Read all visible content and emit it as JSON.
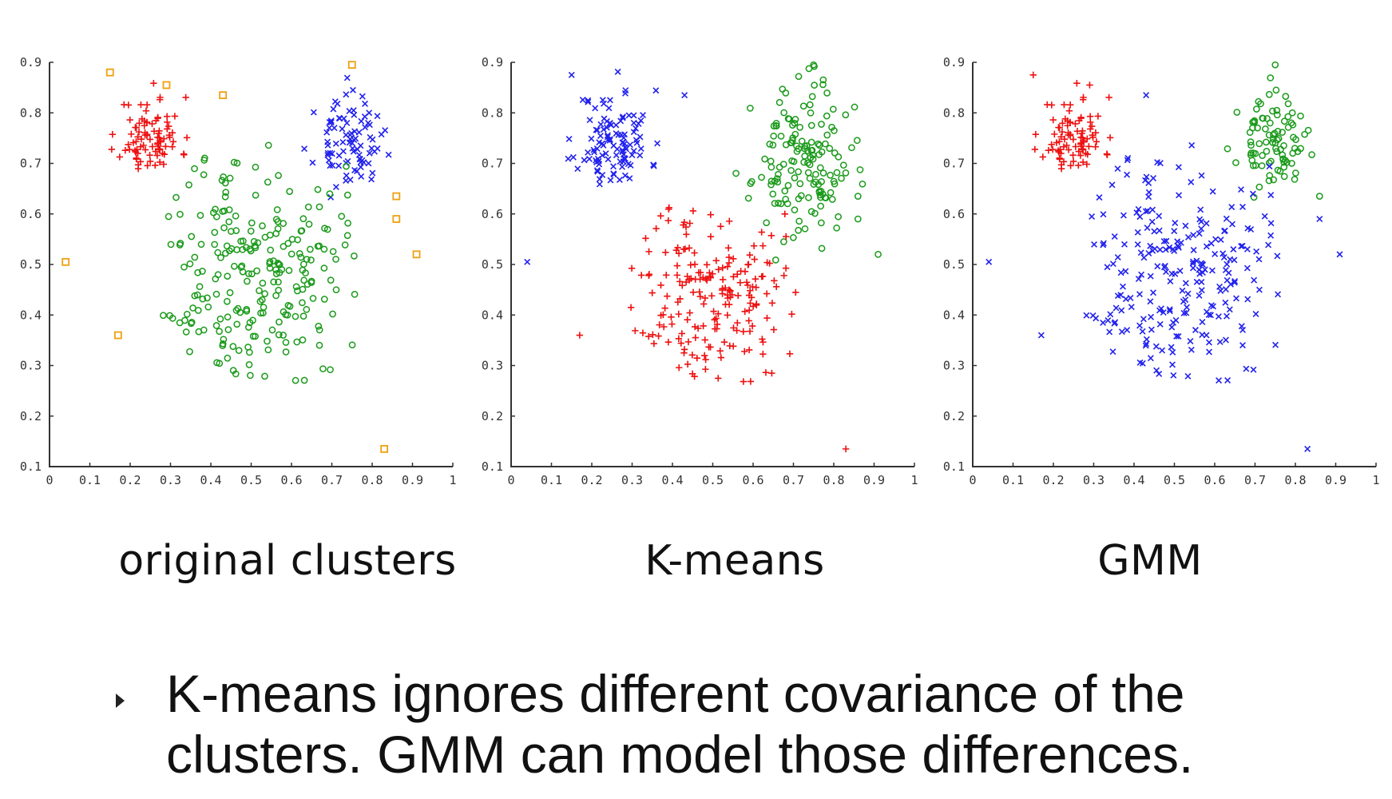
{
  "chart_data": [
    {
      "type": "scatter",
      "caption": "original clusters",
      "xlim": [
        0,
        1
      ],
      "ylim": [
        0.1,
        0.9
      ],
      "x_ticks": [
        "0",
        "0.1",
        "0.2",
        "0.3",
        "0.4",
        "0.5",
        "0.6",
        "0.7",
        "0.8",
        "0.9",
        "1"
      ],
      "y_ticks": [
        "0.1",
        "0.2",
        "0.3",
        "0.4",
        "0.5",
        "0.6",
        "0.7",
        "0.8",
        "0.9"
      ],
      "series": [
        {
          "marker": "plus",
          "color": "#ee1111",
          "cluster": {
            "cx": 0.25,
            "cy": 0.755,
            "sx": 0.038,
            "sy": 0.038,
            "n": 90,
            "seed": 11
          }
        },
        {
          "marker": "x",
          "color": "#2222ee",
          "cluster": {
            "cx": 0.74,
            "cy": 0.74,
            "sx": 0.04,
            "sy": 0.042,
            "n": 90,
            "seed": 23
          }
        },
        {
          "marker": "circle",
          "color": "#1a9a1a",
          "cluster": {
            "cx": 0.505,
            "cy": 0.49,
            "sx": 0.11,
            "sy": 0.115,
            "n": 240,
            "seed": 37,
            "xmin": 0.28,
            "xmax": 0.76,
            "ymin": 0.26,
            "ymax": 0.76
          }
        },
        {
          "marker": "square",
          "color": "#f0a010",
          "points": [
            [
              0.15,
              0.88
            ],
            [
              0.29,
              0.855
            ],
            [
              0.43,
              0.835
            ],
            [
              0.75,
              0.895
            ],
            [
              0.86,
              0.635
            ],
            [
              0.86,
              0.59
            ],
            [
              0.91,
              0.52
            ],
            [
              0.04,
              0.505
            ],
            [
              0.17,
              0.36
            ],
            [
              0.83,
              0.135
            ]
          ]
        }
      ]
    },
    {
      "type": "scatter",
      "caption": "K-means",
      "xlim": [
        0,
        1
      ],
      "ylim": [
        0.1,
        0.9
      ],
      "x_ticks": [
        "0",
        "0.1",
        "0.2",
        "0.3",
        "0.4",
        "0.5",
        "0.6",
        "0.7",
        "0.8",
        "0.9",
        "1"
      ],
      "y_ticks": [
        "0.1",
        "0.2",
        "0.3",
        "0.4",
        "0.5",
        "0.6",
        "0.7",
        "0.8",
        "0.9"
      ],
      "series": [
        {
          "marker": "x",
          "color": "#2222ee",
          "cluster": {
            "cx": 0.255,
            "cy": 0.745,
            "sx": 0.045,
            "sy": 0.05,
            "n": 110,
            "seed": 11
          }
        },
        {
          "marker": "circle",
          "color": "#1a9a1a",
          "cluster": {
            "cx": 0.72,
            "cy": 0.7,
            "sx": 0.06,
            "sy": 0.075,
            "n": 150,
            "seed": 23
          }
        },
        {
          "marker": "plus",
          "color": "#ee1111",
          "cluster": {
            "cx": 0.49,
            "cy": 0.44,
            "sx": 0.09,
            "sy": 0.09,
            "n": 200,
            "seed": 37,
            "xmin": 0.28,
            "xmax": 0.72,
            "ymin": 0.26,
            "ymax": 0.64
          }
        },
        {
          "marker": "square",
          "color": "#f0a010",
          "points": []
        }
      ],
      "extra_points": [
        {
          "marker": "x",
          "color": "#2222ee",
          "points": [
            [
              0.15,
              0.875
            ],
            [
              0.43,
              0.835
            ],
            [
              0.04,
              0.505
            ]
          ]
        },
        {
          "marker": "circle",
          "color": "#1a9a1a",
          "points": [
            [
              0.75,
              0.895
            ],
            [
              0.86,
              0.635
            ],
            [
              0.86,
              0.59
            ],
            [
              0.91,
              0.52
            ]
          ]
        },
        {
          "marker": "plus",
          "color": "#ee1111",
          "points": [
            [
              0.17,
              0.36
            ],
            [
              0.83,
              0.135
            ]
          ]
        }
      ]
    },
    {
      "type": "scatter",
      "caption": "GMM",
      "xlim": [
        0,
        1
      ],
      "ylim": [
        0.1,
        0.9
      ],
      "x_ticks": [
        "0",
        "0.1",
        "0.2",
        "0.3",
        "0.4",
        "0.5",
        "0.6",
        "0.7",
        "0.8",
        "0.9",
        "1"
      ],
      "y_ticks": [
        "0.1",
        "0.2",
        "0.3",
        "0.4",
        "0.5",
        "0.6",
        "0.7",
        "0.8",
        "0.9"
      ],
      "series": [
        {
          "marker": "plus",
          "color": "#ee1111",
          "cluster": {
            "cx": 0.25,
            "cy": 0.755,
            "sx": 0.038,
            "sy": 0.038,
            "n": 90,
            "seed": 11
          }
        },
        {
          "marker": "circle",
          "color": "#1a9a1a",
          "cluster": {
            "cx": 0.74,
            "cy": 0.74,
            "sx": 0.04,
            "sy": 0.042,
            "n": 90,
            "seed": 23
          }
        },
        {
          "marker": "x",
          "color": "#2222ee",
          "cluster": {
            "cx": 0.505,
            "cy": 0.49,
            "sx": 0.11,
            "sy": 0.115,
            "n": 240,
            "seed": 37,
            "xmin": 0.28,
            "xmax": 0.76,
            "ymin": 0.26,
            "ymax": 0.76
          }
        },
        {
          "marker": "square",
          "color": "#f0a010",
          "points": []
        }
      ],
      "extra_points": [
        {
          "marker": "plus",
          "color": "#ee1111",
          "points": [
            [
              0.15,
              0.875
            ],
            [
              0.29,
              0.855
            ]
          ]
        },
        {
          "marker": "circle",
          "color": "#1a9a1a",
          "points": [
            [
              0.75,
              0.895
            ],
            [
              0.86,
              0.635
            ]
          ]
        },
        {
          "marker": "x",
          "color": "#2222ee",
          "points": [
            [
              0.86,
              0.59
            ],
            [
              0.91,
              0.52
            ],
            [
              0.04,
              0.505
            ],
            [
              0.17,
              0.36
            ],
            [
              0.83,
              0.135
            ],
            [
              0.43,
              0.835
            ]
          ]
        }
      ]
    }
  ],
  "bullet": {
    "line1": "K-means ignores different covariance of the",
    "line2": "clusters. GMM can model those differences."
  }
}
